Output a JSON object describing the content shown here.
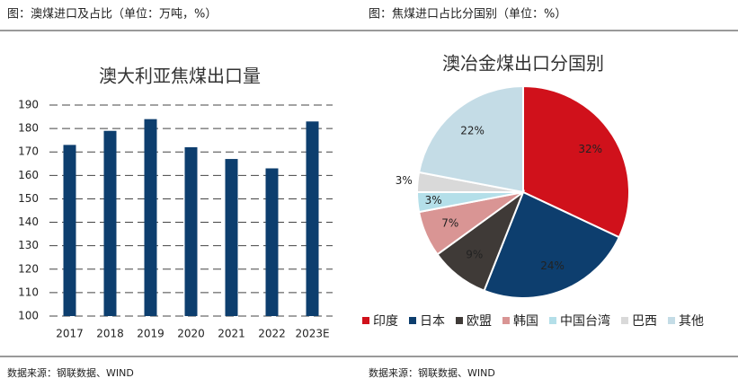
{
  "panels": [
    {
      "caption": "图：澳煤进口及占比（单位：万吨，%）",
      "source": "数据来源：钢联数据、WIND"
    },
    {
      "caption": "图：焦煤进口占比分国别（单位：%）",
      "source": "数据来源：钢联数据、WIND"
    }
  ],
  "chart_data": [
    {
      "type": "bar",
      "title": "澳大利亚焦煤出口量",
      "categories": [
        "2017",
        "2018",
        "2019",
        "2020",
        "2021",
        "2022",
        "2023E"
      ],
      "values": [
        173,
        179,
        184,
        172,
        167,
        163,
        183
      ],
      "color": "#0d3e6e",
      "ylim": [
        100,
        190
      ],
      "yticks": [
        100,
        110,
        120,
        130,
        140,
        150,
        160,
        170,
        180,
        190
      ],
      "grid": true
    },
    {
      "type": "pie",
      "title": "澳冶金煤出口分国别",
      "categories": [
        "印度",
        "日本",
        "欧盟",
        "韩国",
        "中国台湾",
        "巴西",
        "其他"
      ],
      "values": [
        32,
        24,
        9,
        7,
        3,
        3,
        22
      ],
      "value_labels": [
        "32%",
        "24%",
        "9%",
        "7%",
        "3%",
        "3%",
        "22%"
      ],
      "colors": [
        "#d0111b",
        "#0d3e6e",
        "#3f3a37",
        "#d99594",
        "#b4dfe9",
        "#d9d9d9",
        "#c4dce6"
      ],
      "legend": "bottom"
    }
  ]
}
